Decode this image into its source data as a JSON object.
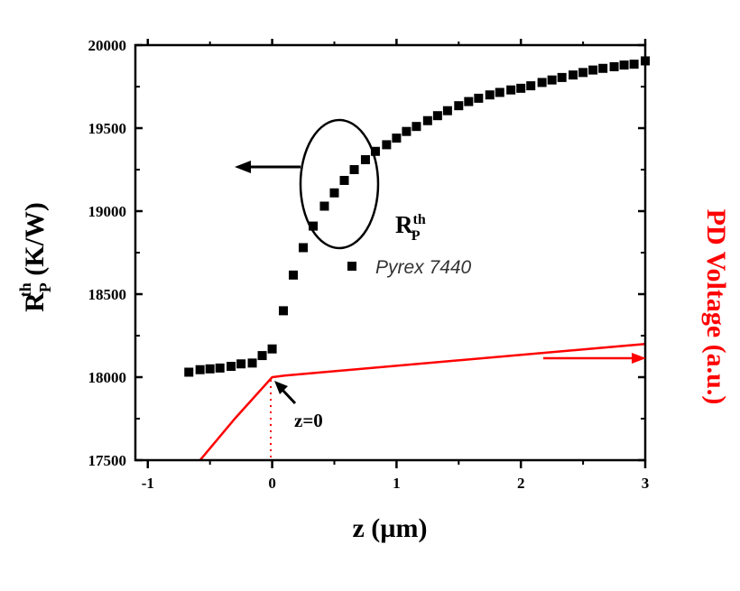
{
  "chart_data": {
    "type": "scatter",
    "xlabel": {
      "main": "z (",
      "unit": "µm",
      "close": ")"
    },
    "ylabel": {
      "base": "R",
      "sub": "P",
      "sup": "th",
      "unit": " (K/W)"
    },
    "ylabel_right": "PD Voltage (a.u.)",
    "xlim": [
      -1.1,
      3
    ],
    "ylim": [
      17500,
      20000
    ],
    "x_ticks": [
      -1,
      0,
      1,
      2,
      3
    ],
    "x_tick_labels": [
      "-1",
      "0",
      "1",
      "2",
      "3"
    ],
    "y_ticks": [
      17500,
      18000,
      18500,
      19000,
      19500,
      20000
    ],
    "y_tick_labels": [
      "17500",
      "18000",
      "18500",
      "19000",
      "19500",
      "20000"
    ],
    "grid": false,
    "series": [
      {
        "name": "Pyrex 7440",
        "marker": "square",
        "color": "#000000",
        "points": [
          [
            -0.67,
            18030
          ],
          [
            -0.58,
            18045
          ],
          [
            -0.5,
            18050
          ],
          [
            -0.42,
            18055
          ],
          [
            -0.33,
            18065
          ],
          [
            -0.25,
            18080
          ],
          [
            -0.16,
            18085
          ],
          [
            -0.08,
            18130
          ],
          [
            0.0,
            18170
          ],
          [
            0.09,
            18400
          ],
          [
            0.17,
            18615
          ],
          [
            0.25,
            18780
          ],
          [
            0.33,
            18910
          ],
          [
            0.42,
            19030
          ],
          [
            0.5,
            19110
          ],
          [
            0.58,
            19185
          ],
          [
            0.66,
            19250
          ],
          [
            0.75,
            19310
          ],
          [
            0.83,
            19360
          ],
          [
            0.92,
            19400
          ],
          [
            1.0,
            19440
          ],
          [
            1.08,
            19480
          ],
          [
            1.16,
            19510
          ],
          [
            1.25,
            19545
          ],
          [
            1.33,
            19575
          ],
          [
            1.41,
            19605
          ],
          [
            1.5,
            19635
          ],
          [
            1.58,
            19660
          ],
          [
            1.66,
            19680
          ],
          [
            1.75,
            19700
          ],
          [
            1.83,
            19715
          ],
          [
            1.92,
            19730
          ],
          [
            2.0,
            19740
          ],
          [
            2.08,
            19755
          ],
          [
            2.17,
            19775
          ],
          [
            2.25,
            19790
          ],
          [
            2.33,
            19805
          ],
          [
            2.42,
            19820
          ],
          [
            2.5,
            19835
          ],
          [
            2.58,
            19850
          ],
          [
            2.66,
            19860
          ],
          [
            2.75,
            19870
          ],
          [
            2.83,
            19880
          ],
          [
            2.91,
            19885
          ],
          [
            3.0,
            19905
          ]
        ]
      },
      {
        "marker": "line",
        "color": "#ff0000",
        "points": [
          [
            -0.58,
            17500
          ],
          [
            -0.3,
            17750
          ],
          [
            0.0,
            18000
          ],
          [
            0.1,
            18010
          ],
          [
            3.0,
            18200
          ]
        ]
      }
    ],
    "legend": {
      "label_base": "R",
      "label_sub": "P",
      "label_sup": "th",
      "entry": "Pyrex 7440"
    },
    "annotations": {
      "z0_label": "z=0"
    }
  }
}
